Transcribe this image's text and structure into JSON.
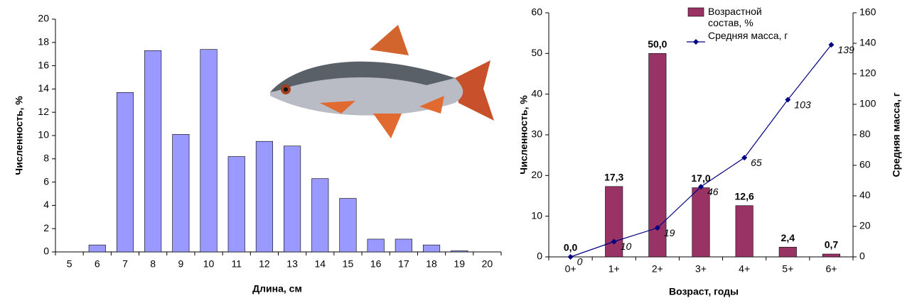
{
  "chart_data": [
    {
      "type": "bar",
      "categories": [
        "5",
        "6",
        "7",
        "8",
        "9",
        "10",
        "11",
        "12",
        "13",
        "14",
        "15",
        "16",
        "17",
        "18",
        "19",
        "20"
      ],
      "values": [
        0,
        0.6,
        13.7,
        17.3,
        10.1,
        17.4,
        8.2,
        9.5,
        9.1,
        6.3,
        4.6,
        1.1,
        1.1,
        0.6,
        0.1,
        0
      ],
      "color": "#9999ff",
      "ylim": [
        0,
        20
      ],
      "yticks": [
        0,
        2,
        4,
        6,
        8,
        10,
        12,
        14,
        16,
        18,
        20
      ],
      "ylabel": "Численность, %",
      "xlabel": "Длина, см"
    },
    {
      "type": "bar_line",
      "categories": [
        "0+",
        "1+",
        "2+",
        "3+",
        "4+",
        "5+",
        "6+"
      ],
      "series": [
        {
          "name": "Возрастной состав, %",
          "type": "bar",
          "color": "#993366",
          "values": [
            0.0,
            17.3,
            50.0,
            17.0,
            12.6,
            2.4,
            0.7
          ],
          "value_labels": [
            "0,0",
            "17,3",
            "50,0",
            "17,0",
            "12,6",
            "2,4",
            "0,7"
          ]
        },
        {
          "name": "Средняя масса, г",
          "type": "line",
          "axis": "y2",
          "color": "#000080",
          "values": [
            0,
            10,
            19,
            46,
            65,
            103,
            139
          ]
        }
      ],
      "ylim": [
        0,
        60
      ],
      "yticks": [
        0,
        10,
        20,
        30,
        40,
        50,
        60
      ],
      "y2lim": [
        0,
        160
      ],
      "y2ticks": [
        0,
        20,
        40,
        60,
        80,
        100,
        120,
        140,
        160
      ],
      "ylabel": "Численность, %",
      "y2label": "Средняя масса, г",
      "xlabel": "Возраст, годы"
    }
  ]
}
